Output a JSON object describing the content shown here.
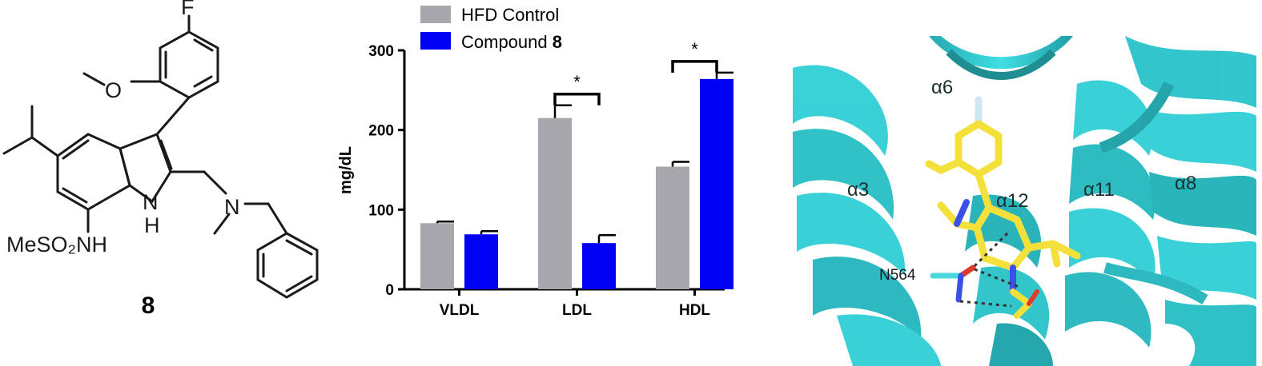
{
  "structure": {
    "compound_number": "8",
    "atoms": {
      "fluorine": "F",
      "oxygen": "O",
      "indole_nh_top": "N",
      "indole_nh_bottom": "H",
      "amine_n": "N",
      "sulfonamide": "MeSO₂NH"
    }
  },
  "chart_data": {
    "type": "bar",
    "categories": [
      "VLDL",
      "LDL",
      "HDL"
    ],
    "series": [
      {
        "name": "HFD Control",
        "values": [
          83,
          215,
          154
        ],
        "errors": [
          2,
          16,
          6
        ],
        "color": "#a7a7ad"
      },
      {
        "name": "Compound 8",
        "values": [
          69,
          58,
          264
        ],
        "errors": [
          4,
          10,
          8
        ],
        "color": "#0000f5"
      }
    ],
    "legend": [
      {
        "prefix": "HFD Control",
        "suffix": ""
      },
      {
        "prefix": "Compound ",
        "suffix": "8"
      }
    ],
    "ylabel": "mg/dL",
    "ylim": [
      0,
      300
    ],
    "yticks": [
      "0",
      "100",
      "200",
      "300"
    ],
    "significance": [
      {
        "category": "LDL",
        "label": "*"
      },
      {
        "category": "HDL",
        "label": "*"
      }
    ],
    "grid": false,
    "legend_position": "top-left"
  },
  "protein": {
    "helix_labels": [
      "α6",
      "α3",
      "α12",
      "α11",
      "α8"
    ],
    "residue_label": "N564",
    "colors": {
      "helix": "#2ed2d8",
      "ligand": "#f3e03a",
      "nitrogen": "#3a50e8",
      "oxygen": "#e03a2a"
    }
  }
}
